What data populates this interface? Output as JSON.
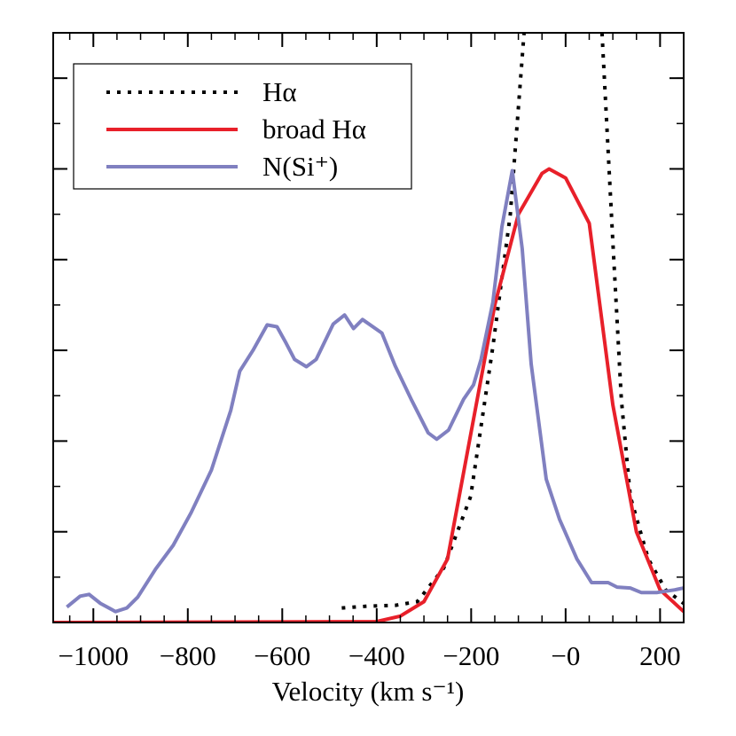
{
  "chart_data": {
    "type": "line",
    "xlabel": "Velocity (km s⁻¹)",
    "xlim": [
      -1085,
      250
    ],
    "ylim": [
      0,
      6.5
    ],
    "xticks": [
      {
        "value": -1000,
        "label": "−1000"
      },
      {
        "value": -800,
        "label": "−800"
      },
      {
        "value": -600,
        "label": "−600"
      },
      {
        "value": -400,
        "label": "−400"
      },
      {
        "value": -200,
        "label": "−200"
      },
      {
        "value": 0,
        "label": "−0"
      },
      200
    ],
    "yticks": [
      0,
      1,
      2,
      3,
      4,
      5,
      6
    ],
    "legend": "upper left",
    "series": [
      {
        "name": "Hα",
        "color": "#000000",
        "style": "dotted",
        "x": [
          -474,
          -420,
          -360,
          -314,
          -258,
          -201,
          -154,
          -117,
          -88,
          -5,
          77,
          100,
          118,
          137,
          175,
          212,
          250
        ],
        "values": [
          0.16,
          0.18,
          0.19,
          0.23,
          0.6,
          1.39,
          3.04,
          4.5,
          6.5,
          null,
          6.5,
          4.2,
          2.46,
          1.39,
          0.7,
          0.36,
          0.21
        ]
      },
      {
        "name": "broad Hα",
        "color": "#e8202a",
        "style": "solid",
        "x": [
          -1085,
          -400,
          -350,
          -300,
          -250,
          -200,
          -150,
          -100,
          -50,
          -35,
          0,
          50,
          100,
          150,
          200,
          250
        ],
        "values": [
          0,
          0.01,
          0.07,
          0.23,
          0.7,
          2.1,
          3.5,
          4.5,
          4.95,
          5.0,
          4.9,
          4.4,
          2.4,
          1.0,
          0.36,
          0.12
        ]
      },
      {
        "name": "N(Si⁺)",
        "color": "#8080c0",
        "style": "solid",
        "x": [
          -1056,
          -1028,
          -1009,
          -985,
          -953,
          -929,
          -906,
          -868,
          -831,
          -793,
          -750,
          -709,
          -690,
          -662,
          -632,
          -611,
          -592,
          -574,
          -549,
          -528,
          -492,
          -468,
          -449,
          -430,
          -389,
          -361,
          -327,
          -291,
          -273,
          -248,
          -216,
          -195,
          -179,
          -154,
          -135,
          -113,
          -92,
          -73,
          -41,
          -13,
          24,
          55,
          90,
          109,
          137,
          160,
          194,
          231,
          250
        ],
        "values": [
          0.17,
          0.29,
          0.31,
          0.21,
          0.12,
          0.16,
          0.28,
          0.59,
          0.85,
          1.21,
          1.68,
          2.34,
          2.77,
          3.0,
          3.28,
          3.26,
          3.08,
          2.9,
          2.82,
          2.9,
          3.29,
          3.39,
          3.24,
          3.34,
          3.19,
          2.83,
          2.46,
          2.09,
          2.02,
          2.12,
          2.46,
          2.62,
          2.9,
          3.53,
          4.36,
          4.98,
          4.12,
          2.85,
          1.58,
          1.14,
          0.7,
          0.44,
          0.44,
          0.39,
          0.38,
          0.33,
          0.33,
          0.36,
          0.38
        ]
      }
    ]
  }
}
